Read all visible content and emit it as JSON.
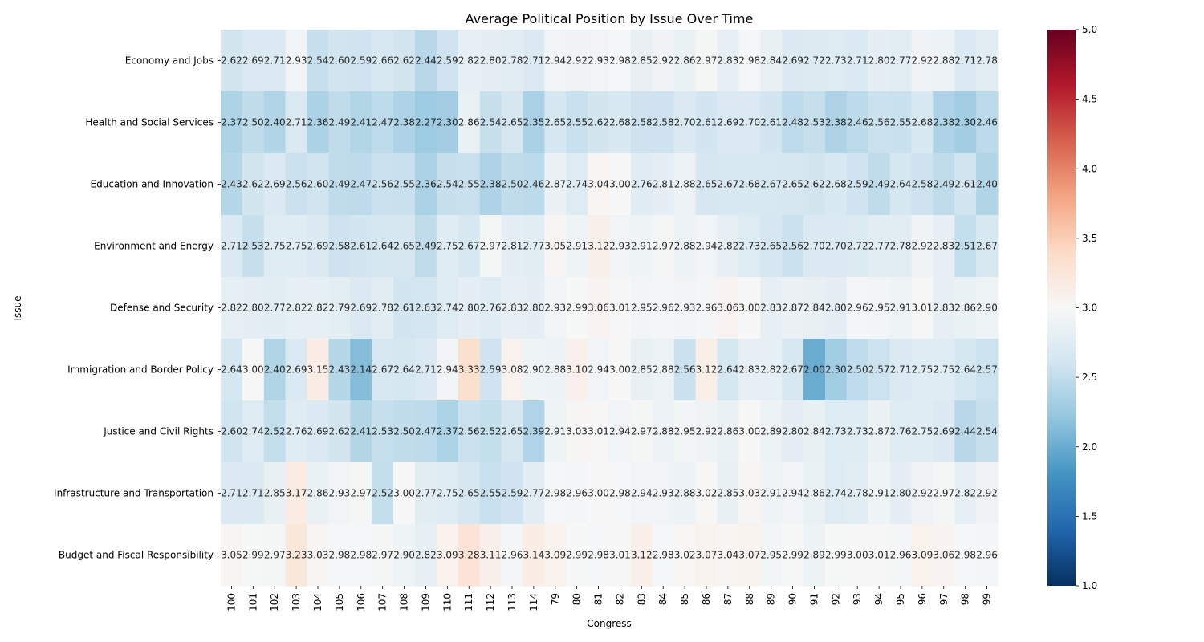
{
  "chart_data": {
    "type": "heatmap",
    "title": "Average Political Position by Issue Over Time",
    "xlabel": "Congress",
    "ylabel": "Issue",
    "x": [
      "100",
      "101",
      "102",
      "103",
      "104",
      "105",
      "106",
      "107",
      "108",
      "109",
      "110",
      "111",
      "112",
      "113",
      "114",
      "79",
      "80",
      "81",
      "82",
      "83",
      "84",
      "85",
      "86",
      "87",
      "88",
      "89",
      "90",
      "91",
      "92",
      "93",
      "94",
      "95",
      "96",
      "97",
      "98",
      "99"
    ],
    "y": [
      "Economy and Jobs",
      "Health and Social Services",
      "Education and Innovation",
      "Environment and Energy",
      "Defense and Security",
      "Immigration and Border Policy",
      "Justice and Civil Rights",
      "Infrastructure and Transportation",
      "Budget and Fiscal Responsibility"
    ],
    "values": [
      [
        2.62,
        2.69,
        2.71,
        2.93,
        2.54,
        2.6,
        2.59,
        2.66,
        2.62,
        2.44,
        2.59,
        2.82,
        2.8,
        2.78,
        2.71,
        2.94,
        2.92,
        2.93,
        2.98,
        2.85,
        2.92,
        2.86,
        2.97,
        2.83,
        2.98,
        2.84,
        2.69,
        2.72,
        2.73,
        2.71,
        2.8,
        2.77,
        2.92,
        2.88,
        2.71,
        2.78
      ],
      [
        2.37,
        2.5,
        2.4,
        2.71,
        2.36,
        2.49,
        2.41,
        2.47,
        2.38,
        2.27,
        2.3,
        2.86,
        2.54,
        2.65,
        2.35,
        2.65,
        2.55,
        2.62,
        2.68,
        2.58,
        2.58,
        2.7,
        2.61,
        2.69,
        2.7,
        2.61,
        2.48,
        2.53,
        2.38,
        2.46,
        2.56,
        2.55,
        2.68,
        2.38,
        2.3,
        2.46
      ],
      [
        2.43,
        2.62,
        2.69,
        2.56,
        2.6,
        2.49,
        2.47,
        2.56,
        2.55,
        2.36,
        2.54,
        2.55,
        2.38,
        2.5,
        2.46,
        2.87,
        2.74,
        3.04,
        3.0,
        2.76,
        2.81,
        2.88,
        2.65,
        2.67,
        2.68,
        2.67,
        2.65,
        2.62,
        2.68,
        2.59,
        2.49,
        2.64,
        2.58,
        2.49,
        2.61,
        2.4
      ],
      [
        2.71,
        2.53,
        2.75,
        2.75,
        2.69,
        2.58,
        2.61,
        2.64,
        2.65,
        2.49,
        2.75,
        2.67,
        2.97,
        2.81,
        2.77,
        3.05,
        2.91,
        3.12,
        2.93,
        2.91,
        2.97,
        2.88,
        2.94,
        2.82,
        2.73,
        2.65,
        2.56,
        2.7,
        2.7,
        2.72,
        2.77,
        2.78,
        2.92,
        2.83,
        2.51,
        2.67
      ],
      [
        2.82,
        2.8,
        2.77,
        2.82,
        2.82,
        2.79,
        2.69,
        2.78,
        2.61,
        2.63,
        2.74,
        2.8,
        2.76,
        2.83,
        2.8,
        2.93,
        2.99,
        3.06,
        3.01,
        2.95,
        2.96,
        2.93,
        2.96,
        3.06,
        3.0,
        2.83,
        2.87,
        2.84,
        2.8,
        2.96,
        2.95,
        2.91,
        3.01,
        2.83,
        2.86,
        2.9
      ],
      [
        2.64,
        3.0,
        2.4,
        2.69,
        3.15,
        2.43,
        2.14,
        2.67,
        2.64,
        2.71,
        2.94,
        3.33,
        2.59,
        3.08,
        2.9,
        2.88,
        3.1,
        2.94,
        3.0,
        2.85,
        2.88,
        2.56,
        3.12,
        2.64,
        2.83,
        2.82,
        2.67,
        2.0,
        2.3,
        2.5,
        2.57,
        2.71,
        2.75,
        2.75,
        2.64,
        2.57
      ],
      [
        2.6,
        2.74,
        2.52,
        2.76,
        2.69,
        2.62,
        2.41,
        2.53,
        2.5,
        2.47,
        2.37,
        2.56,
        2.52,
        2.65,
        2.39,
        2.91,
        3.03,
        3.01,
        2.94,
        2.97,
        2.88,
        2.95,
        2.92,
        2.86,
        3.0,
        2.89,
        2.8,
        2.84,
        2.73,
        2.73,
        2.87,
        2.76,
        2.75,
        2.69,
        2.44,
        2.54
      ],
      [
        2.71,
        2.71,
        2.85,
        3.17,
        2.86,
        2.93,
        2.97,
        2.52,
        3.0,
        2.77,
        2.75,
        2.65,
        2.55,
        2.59,
        2.77,
        2.98,
        2.96,
        3.0,
        2.98,
        2.94,
        2.93,
        2.88,
        3.02,
        2.85,
        3.03,
        2.91,
        2.94,
        2.86,
        2.74,
        2.78,
        2.91,
        2.8,
        2.92,
        2.97,
        2.82,
        2.92
      ],
      [
        3.05,
        2.99,
        2.97,
        3.23,
        3.03,
        2.98,
        2.98,
        2.97,
        2.9,
        2.82,
        3.09,
        3.28,
        3.11,
        2.96,
        3.14,
        3.09,
        2.99,
        2.98,
        3.01,
        3.12,
        2.98,
        3.02,
        3.07,
        3.04,
        3.07,
        2.95,
        2.99,
        2.89,
        2.99,
        3.0,
        3.01,
        2.96,
        3.09,
        3.06,
        2.98,
        2.96
      ]
    ],
    "colorbar": {
      "min": 1.0,
      "max": 5.0,
      "ticks": [
        "1.0",
        "1.5",
        "2.0",
        "2.5",
        "3.0",
        "3.5",
        "4.0",
        "4.5",
        "5.0"
      ],
      "colormap": "RdBu_r"
    },
    "grid": false
  }
}
